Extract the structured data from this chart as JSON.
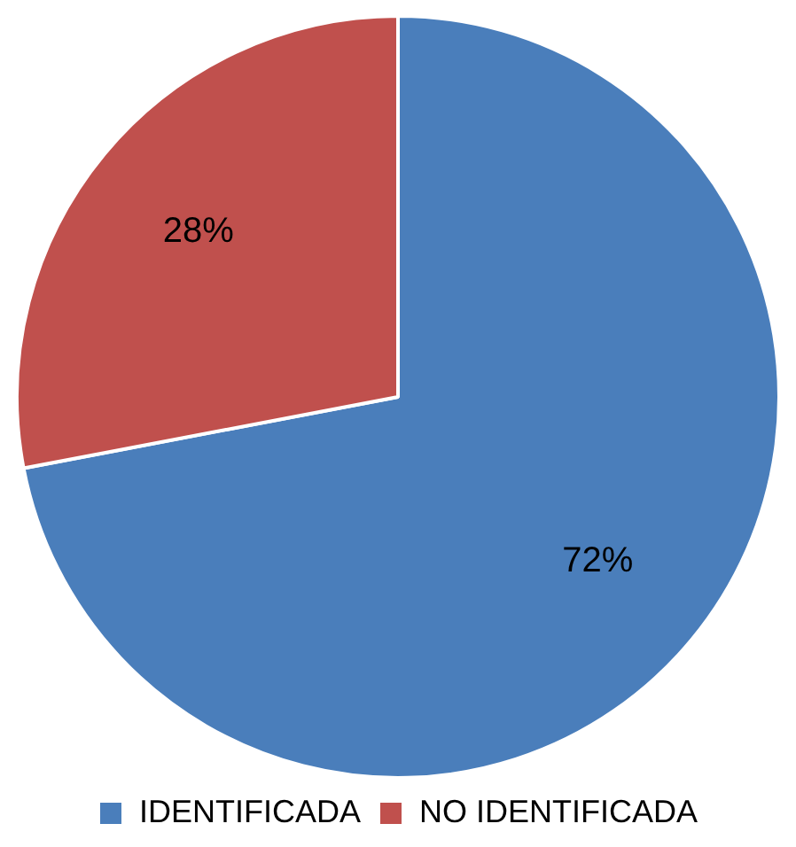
{
  "chart_data": {
    "type": "pie",
    "categories": [
      "IDENTIFICADA",
      "NO IDENTIFICADA"
    ],
    "values": [
      72,
      28
    ],
    "colors": [
      "#4a7ebb",
      "#c0504d"
    ],
    "legend": "bottom",
    "value_labels": [
      "72%",
      "28%"
    ]
  }
}
